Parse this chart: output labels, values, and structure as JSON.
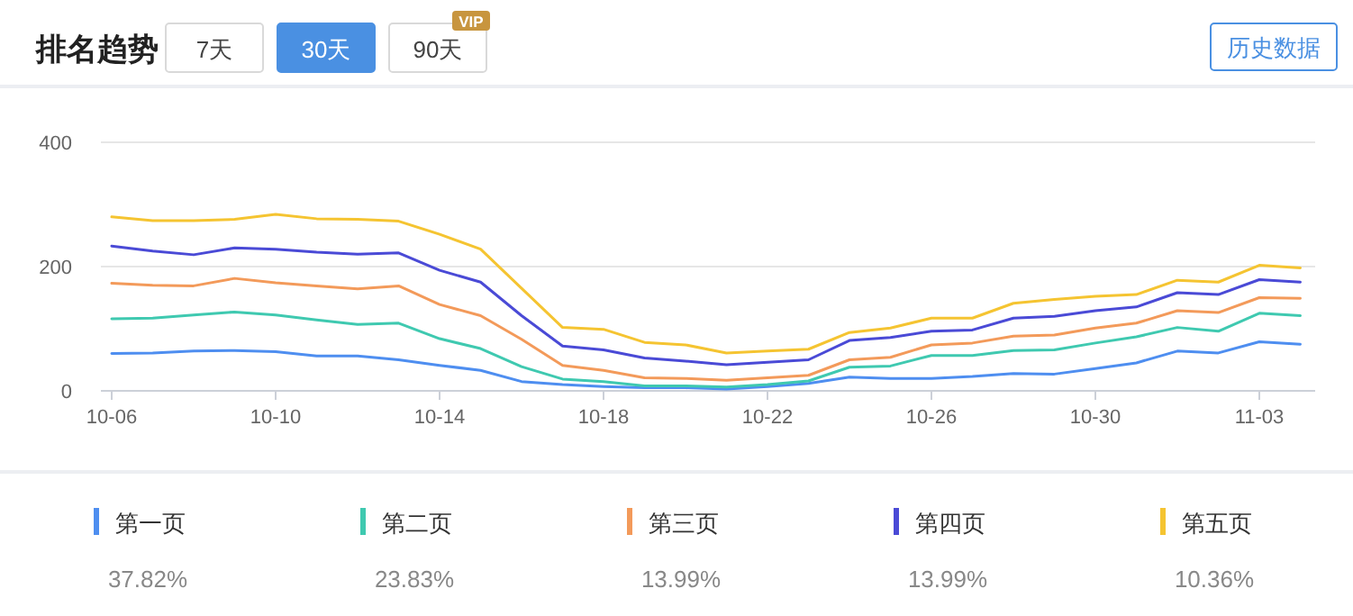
{
  "chart_data": {
    "type": "line",
    "title": "排名趋势",
    "annotations": [
      "7天",
      "30天",
      "90天",
      "VIP",
      "历史数据",
      "37.82%",
      "23.83%",
      "13.99%",
      "13.99%",
      "10.36%"
    ],
    "categories": [
      "10-06",
      null,
      null,
      null,
      "10-10",
      null,
      null,
      null,
      "10-14",
      null,
      null,
      null,
      "10-18",
      null,
      null,
      null,
      "10-22",
      null,
      null,
      null,
      "10-26",
      null,
      null,
      null,
      "10-30",
      null,
      null,
      null,
      "11-03",
      null
    ],
    "series": [
      {
        "name": "第一页",
        "color": "#4e8ef0",
        "values": [
          60,
          61,
          64,
          65,
          63,
          56,
          56,
          50,
          41,
          33,
          15,
          10,
          7,
          5,
          5,
          3,
          7,
          12,
          22,
          20,
          20,
          23,
          28,
          27,
          36,
          45,
          64,
          61,
          79,
          75
        ]
      },
      {
        "name": "第二页",
        "color": "#3fc9b0",
        "values": [
          116,
          117,
          122,
          127,
          122,
          114,
          107,
          109,
          84,
          68,
          39,
          19,
          15,
          8,
          8,
          6,
          10,
          16,
          38,
          40,
          57,
          57,
          65,
          66,
          77,
          87,
          102,
          96,
          125,
          121
        ]
      },
      {
        "name": "第三页",
        "color": "#f39a5a",
        "values": [
          173,
          170,
          169,
          181,
          174,
          169,
          164,
          169,
          139,
          121,
          83,
          41,
          33,
          21,
          20,
          17,
          21,
          25,
          50,
          54,
          74,
          77,
          88,
          90,
          101,
          109,
          129,
          126,
          150,
          149
        ]
      },
      {
        "name": "第四页",
        "color": "#4a4ad6",
        "values": [
          233,
          225,
          219,
          230,
          228,
          223,
          220,
          222,
          194,
          175,
          121,
          72,
          66,
          53,
          48,
          42,
          46,
          50,
          81,
          86,
          96,
          98,
          117,
          120,
          129,
          135,
          158,
          155,
          179,
          175
        ]
      },
      {
        "name": "第五页",
        "color": "#f5c431",
        "values": [
          280,
          274,
          274,
          276,
          284,
          277,
          276,
          273,
          252,
          228,
          165,
          102,
          99,
          78,
          74,
          61,
          64,
          67,
          94,
          101,
          117,
          117,
          141,
          147,
          152,
          155,
          178,
          175,
          202,
          198
        ]
      }
    ],
    "ylim": [
      0,
      400
    ],
    "yticks": [
      0,
      200,
      400
    ],
    "grid": "y",
    "legend": "bottom",
    "marker": "none",
    "line_style": "solid"
  }
}
